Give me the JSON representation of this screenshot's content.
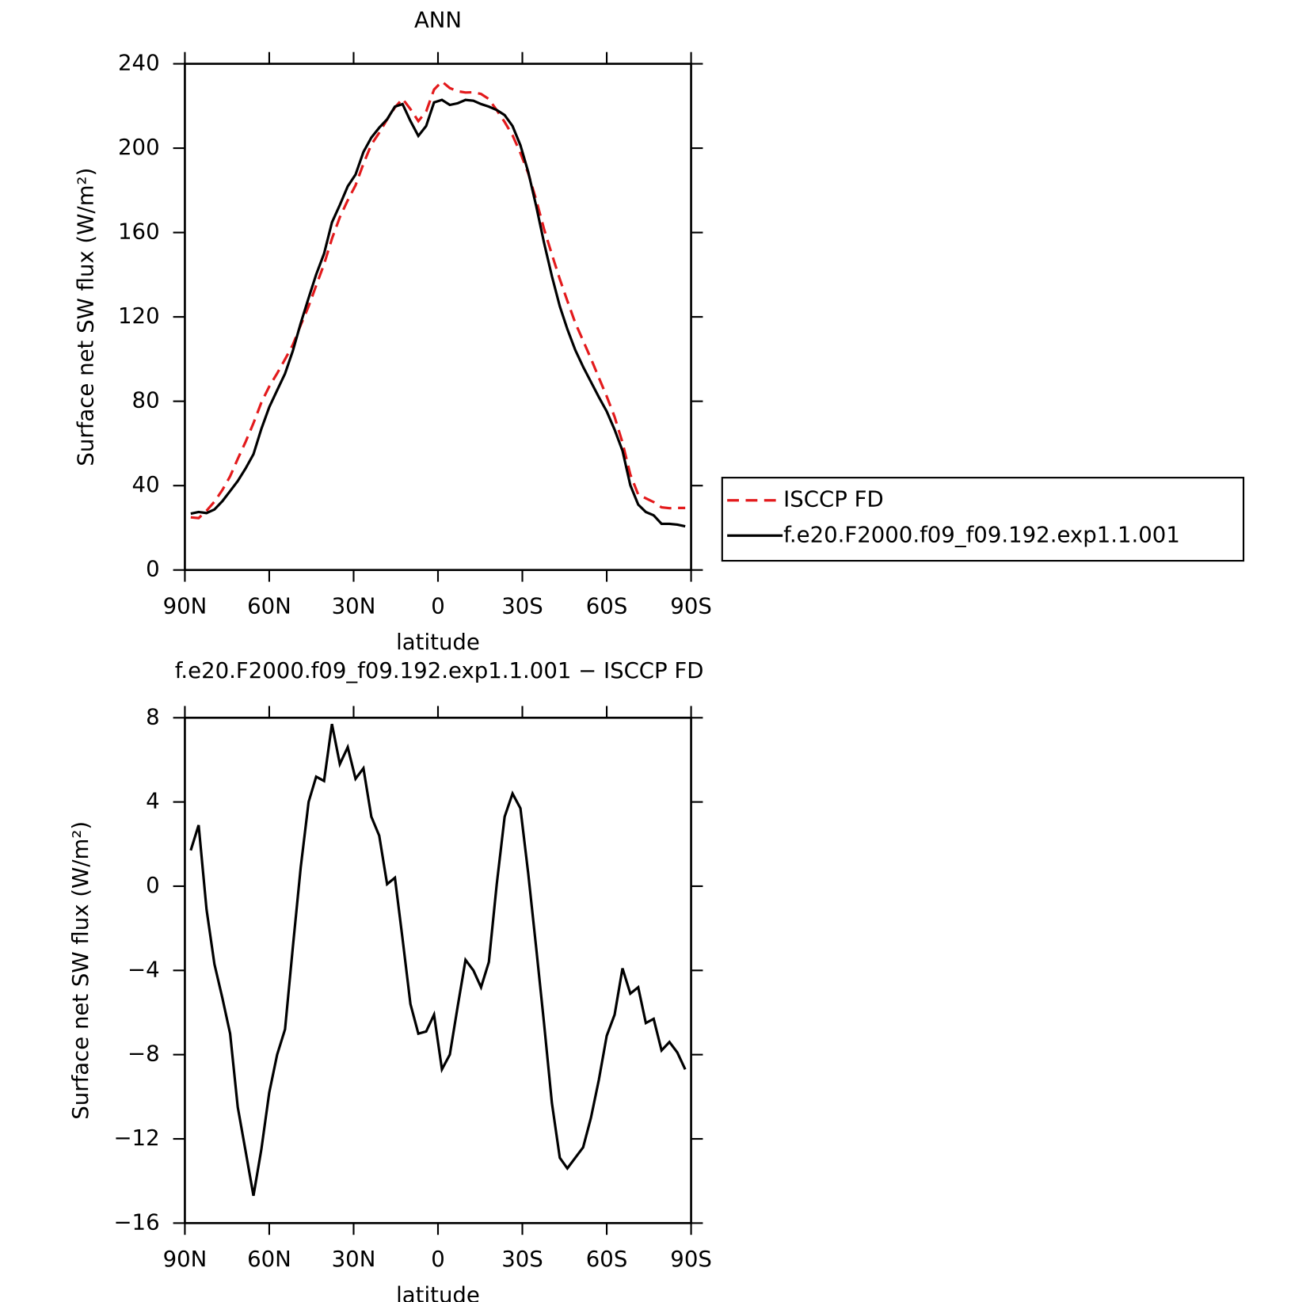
{
  "chart_data": [
    {
      "type": "line",
      "title": "ANN",
      "xlabel": "latitude",
      "ylabel": "Surface net SW flux (W/m²)",
      "x": [
        87.9,
        85.1,
        82.3,
        79.5,
        76.7,
        73.9,
        71.2,
        68.4,
        65.6,
        62.8,
        60.0,
        57.2,
        54.4,
        51.6,
        48.8,
        46.0,
        43.3,
        40.5,
        37.7,
        34.9,
        32.1,
        29.3,
        26.5,
        23.7,
        20.9,
        18.1,
        15.3,
        12.6,
        9.8,
        7.0,
        4.2,
        1.4,
        -1.4,
        -4.2,
        -7.0,
        -9.8,
        -12.6,
        -15.3,
        -18.1,
        -20.9,
        -23.7,
        -26.5,
        -29.3,
        -32.1,
        -34.9,
        -37.7,
        -40.5,
        -43.3,
        -46.0,
        -48.8,
        -51.6,
        -54.4,
        -57.2,
        -60.0,
        -62.8,
        -65.6,
        -68.4,
        -71.2,
        -73.9,
        -76.7,
        -79.5,
        -82.3,
        -85.1,
        -87.9
      ],
      "series": [
        {
          "name": "ISCCP FD",
          "color": "#e31a1c",
          "line_style": "dashed",
          "values": [
            25.0,
            24.6,
            28.1,
            32.4,
            37.9,
            44.4,
            52.7,
            60.8,
            69.6,
            79.4,
            87.0,
            93.2,
            99.9,
            106.8,
            116.1,
            125.0,
            134.9,
            145.0,
            157.1,
            167.3,
            175.3,
            182.4,
            192.6,
            201.7,
            207.3,
            213.6,
            219.3,
            223.4,
            218.5,
            212.8,
            217.4,
            227.8,
            231.6,
            228.5,
            227.0,
            226.4,
            226.5,
            225.7,
            223.3,
            218.0,
            212.4,
            206.1,
            197.7,
            188.1,
            175.6,
            161.7,
            149.6,
            137.9,
            127.6,
            117.2,
            108.7,
            100.2,
            91.2,
            82.3,
            72.6,
            60.4,
            45.3,
            35.8,
            34.0,
            32.2,
            29.7,
            29.3,
            29.4,
            29.4
          ]
        },
        {
          "name": "f.e20.F2000.f09_f09.192.exp1.1.001",
          "color": "#000000",
          "line_style": "solid",
          "values": [
            26.7,
            27.5,
            27.0,
            28.7,
            32.6,
            37.4,
            42.2,
            48.2,
            54.9,
            66.9,
            77.2,
            85.2,
            93.1,
            103.9,
            117.0,
            129.0,
            140.1,
            150.0,
            164.8,
            173.1,
            181.9,
            187.5,
            198.2,
            205.0,
            209.7,
            213.7,
            219.7,
            220.9,
            212.9,
            205.8,
            210.5,
            221.7,
            222.9,
            220.5,
            221.3,
            222.9,
            222.5,
            220.9,
            219.7,
            218.1,
            215.7,
            210.5,
            201.4,
            188.7,
            172.7,
            155.2,
            139.3,
            125.0,
            114.2,
            104.3,
            96.3,
            89.2,
            82.0,
            75.2,
            66.5,
            56.5,
            40.2,
            31.0,
            27.5,
            25.9,
            21.9,
            21.9,
            21.5,
            20.7
          ]
        }
      ],
      "xlim": [
        90,
        -90
      ],
      "xticks": [
        {
          "value": 90,
          "label": "90N"
        },
        {
          "value": 60,
          "label": "60N"
        },
        {
          "value": 30,
          "label": "30N"
        },
        0,
        {
          "value": -30,
          "label": "30S"
        },
        {
          "value": -60,
          "label": "60S"
        },
        {
          "value": -90,
          "label": "90S"
        }
      ],
      "ylim": [
        0,
        240
      ],
      "yticks": [
        0,
        40,
        80,
        120,
        160,
        200,
        240
      ],
      "legend": "outside-right"
    },
    {
      "type": "line",
      "title": "f.e20.F2000.f09_f09.192.exp1.1.001 − ISCCP FD",
      "xlabel": "latitude",
      "ylabel": "Surface net SW flux (W/m²)",
      "x": [
        87.9,
        85.1,
        82.3,
        79.5,
        76.7,
        73.9,
        71.2,
        68.4,
        65.6,
        62.8,
        60.0,
        57.2,
        54.4,
        51.6,
        48.8,
        46.0,
        43.3,
        40.5,
        37.7,
        34.9,
        32.1,
        29.3,
        26.5,
        23.7,
        20.9,
        18.1,
        15.3,
        12.6,
        9.8,
        7.0,
        4.2,
        1.4,
        -1.4,
        -4.2,
        -7.0,
        -9.8,
        -12.6,
        -15.3,
        -18.1,
        -20.9,
        -23.7,
        -26.5,
        -29.3,
        -32.1,
        -34.9,
        -37.7,
        -40.5,
        -43.3,
        -46.0,
        -48.8,
        -51.6,
        -54.4,
        -57.2,
        -60.0,
        -62.8,
        -65.6,
        -68.4,
        -71.2,
        -73.9,
        -76.7,
        -79.5,
        -82.3,
        -85.1,
        -87.9
      ],
      "values": [
        1.7,
        2.9,
        -1.1,
        -3.7,
        -5.3,
        -7.0,
        -10.5,
        -12.6,
        -14.7,
        -12.5,
        -9.8,
        -8.0,
        -6.8,
        -2.9,
        0.9,
        4.0,
        5.2,
        5.0,
        7.7,
        5.8,
        6.6,
        5.1,
        5.6,
        3.3,
        2.4,
        0.1,
        0.4,
        -2.5,
        -5.6,
        -7.0,
        -6.9,
        -6.1,
        -8.7,
        -8.0,
        -5.7,
        -3.5,
        -4.0,
        -4.8,
        -3.6,
        0.1,
        3.3,
        4.4,
        3.7,
        0.6,
        -2.9,
        -6.5,
        -10.3,
        -12.9,
        -13.4,
        -12.9,
        -12.4,
        -11.0,
        -9.2,
        -7.1,
        -6.1,
        -3.9,
        -5.1,
        -4.8,
        -6.5,
        -6.3,
        -7.8,
        -7.4,
        -7.9,
        -8.7
      ],
      "color": "#000000",
      "xlim": [
        90,
        -90
      ],
      "xticks": [
        {
          "value": 90,
          "label": "90N"
        },
        {
          "value": 60,
          "label": "60N"
        },
        {
          "value": 30,
          "label": "30N"
        },
        0,
        {
          "value": -30,
          "label": "30S"
        },
        {
          "value": -60,
          "label": "60S"
        },
        {
          "value": -90,
          "label": "90S"
        }
      ],
      "ylim": [
        -16,
        8
      ],
      "yticks": [
        -16,
        -12,
        -8,
        -4,
        0,
        4,
        8
      ]
    }
  ]
}
